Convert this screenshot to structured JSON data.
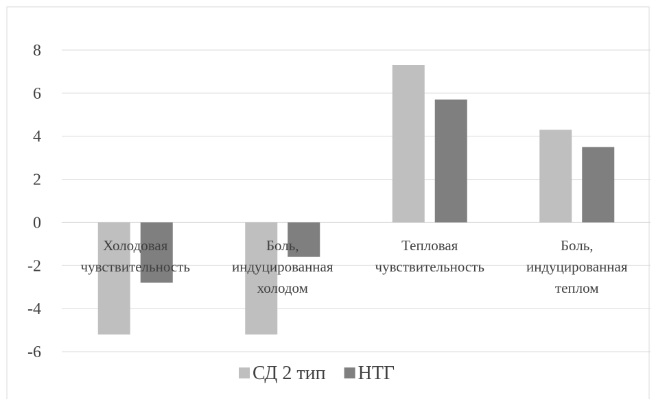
{
  "chart_data": {
    "type": "bar",
    "title": "",
    "xlabel": "",
    "ylabel": "",
    "ylim": [
      -6,
      8
    ],
    "yticks": [
      8,
      6,
      4,
      2,
      0,
      -2,
      -4,
      -6
    ],
    "grid": true,
    "legend_position": "bottom",
    "categories": [
      [
        "Холодовая",
        "чувствительность"
      ],
      [
        "Боль,",
        "индуцированная",
        "холодом"
      ],
      [
        "Тепловая",
        "чувствительность"
      ],
      [
        "Боль,",
        "индуцированная",
        "теплом"
      ]
    ],
    "series": [
      {
        "name": "СД 2 тип",
        "color": "#bfbfbf",
        "values": [
          -5.2,
          -5.2,
          7.3,
          4.3
        ]
      },
      {
        "name": "НТГ",
        "color": "#7f7f7f",
        "values": [
          -2.8,
          -1.6,
          5.7,
          3.5
        ]
      }
    ]
  }
}
